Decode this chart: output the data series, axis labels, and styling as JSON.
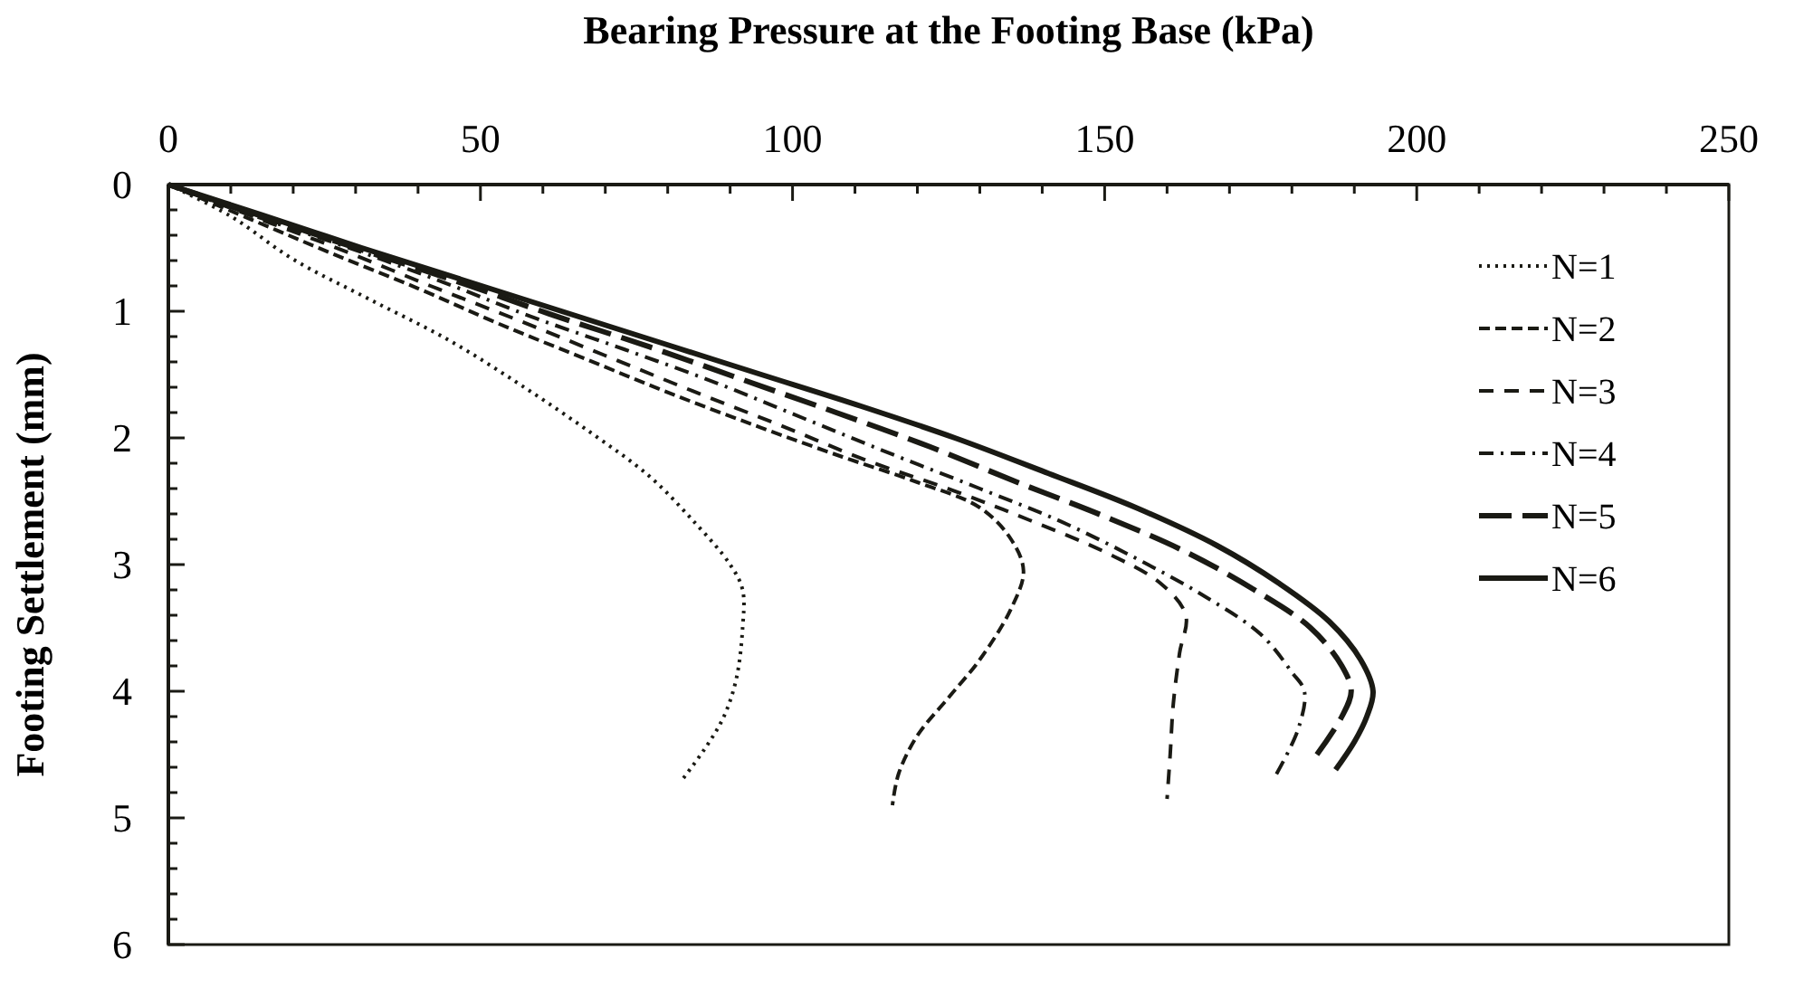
{
  "chart_data": {
    "type": "line",
    "xlabel": "Bearing Pressure at the Footing Base (kPa)",
    "ylabel": "Footing Settlement (mm)",
    "xlim": [
      0,
      250
    ],
    "ylim": [
      6,
      0
    ],
    "xticks": [
      0,
      {
        "value": 10,
        "label": null
      },
      {
        "value": 20,
        "label": null
      },
      {
        "value": 30,
        "label": null
      },
      {
        "value": 40,
        "label": null
      },
      50,
      {
        "value": 60,
        "label": null
      },
      {
        "value": 70,
        "label": null
      },
      {
        "value": 80,
        "label": null
      },
      {
        "value": 90,
        "label": null
      },
      100,
      {
        "value": 110,
        "label": null
      },
      {
        "value": 120,
        "label": null
      },
      {
        "value": 130,
        "label": null
      },
      {
        "value": 140,
        "label": null
      },
      150,
      {
        "value": 160,
        "label": null
      },
      {
        "value": 170,
        "label": null
      },
      {
        "value": 180,
        "label": null
      },
      {
        "value": 190,
        "label": null
      },
      200,
      {
        "value": 210,
        "label": null
      },
      {
        "value": 220,
        "label": null
      },
      {
        "value": 230,
        "label": null
      },
      {
        "value": 240,
        "label": null
      },
      250
    ],
    "yticks": [
      0,
      {
        "value": 0.2,
        "label": null
      },
      {
        "value": 0.4,
        "label": null
      },
      {
        "value": 0.6,
        "label": null
      },
      {
        "value": 0.8,
        "label": null
      },
      1,
      {
        "value": 1.2,
        "label": null
      },
      {
        "value": 1.4,
        "label": null
      },
      {
        "value": 1.6,
        "label": null
      },
      {
        "value": 1.8,
        "label": null
      },
      2,
      {
        "value": 2.2,
        "label": null
      },
      {
        "value": 2.4,
        "label": null
      },
      {
        "value": 2.6,
        "label": null
      },
      {
        "value": 2.8,
        "label": null
      },
      3,
      {
        "value": 3.2,
        "label": null
      },
      {
        "value": 3.4,
        "label": null
      },
      {
        "value": 3.6,
        "label": null
      },
      {
        "value": 3.8,
        "label": null
      },
      4,
      {
        "value": 4.2,
        "label": null
      },
      {
        "value": 4.4,
        "label": null
      },
      {
        "value": 4.6,
        "label": null
      },
      {
        "value": 4.8,
        "label": null
      },
      5,
      {
        "value": 5.2,
        "label": null
      },
      {
        "value": 5.4,
        "label": null
      },
      {
        "value": 5.6,
        "label": null
      },
      {
        "value": 5.8,
        "label": null
      },
      6
    ],
    "legend": "top right",
    "grid": false,
    "marker": "none",
    "series": [
      {
        "name": "N=1",
        "color": "#1a1a14",
        "line_style": "dotted",
        "x": [
          0,
          10,
          20,
          32,
          45,
          57,
          68,
          77,
          84,
          90,
          92,
          92,
          91,
          89,
          86,
          82
        ],
        "values": [
          0,
          0.25,
          0.59,
          0.9,
          1.23,
          1.6,
          1.97,
          2.3,
          2.65,
          3.0,
          3.2,
          3.5,
          3.9,
          4.2,
          4.45,
          4.72
        ]
      },
      {
        "name": "N=2",
        "color": "#1a1a14",
        "line_style": "dashed",
        "x": [
          0,
          13,
          26,
          40,
          53,
          67,
          81,
          95,
          108,
          120,
          130,
          135,
          137,
          135,
          130,
          125,
          120,
          117,
          116
        ],
        "values": [
          0,
          0.27,
          0.54,
          0.82,
          1.1,
          1.38,
          1.66,
          1.92,
          2.15,
          2.35,
          2.55,
          2.8,
          3.05,
          3.35,
          3.75,
          4.05,
          4.35,
          4.65,
          4.9
        ]
      },
      {
        "name": "N=3",
        "color": "#1a1a14",
        "line_style": "dashed",
        "x": [
          0,
          14,
          28,
          42,
          56,
          70,
          84,
          98,
          112,
          126,
          138,
          150,
          159,
          163,
          162,
          161,
          160.5,
          160
        ],
        "values": [
          0,
          0.26,
          0.52,
          0.8,
          1.07,
          1.35,
          1.63,
          1.9,
          2.18,
          2.42,
          2.65,
          2.9,
          3.15,
          3.4,
          3.7,
          4.1,
          4.5,
          4.85
        ]
      },
      {
        "name": "N=4",
        "color": "#1a1a14",
        "line_style": "dashed",
        "x": [
          0,
          14,
          29,
          44,
          58,
          73,
          88,
          102,
          116,
          130,
          143,
          155,
          166,
          175,
          180,
          182,
          181,
          177
        ],
        "values": [
          0,
          0.25,
          0.5,
          0.77,
          1.04,
          1.3,
          1.57,
          1.85,
          2.13,
          2.4,
          2.66,
          2.95,
          3.25,
          3.55,
          3.85,
          4.0,
          4.3,
          4.7
        ]
      },
      {
        "name": "N=5",
        "color": "#1a1a14",
        "line_style": "dashed",
        "x": [
          0,
          15,
          30,
          46,
          61,
          77,
          92,
          107,
          122,
          136,
          150,
          163,
          174,
          183,
          188,
          189.5,
          188,
          184
        ],
        "values": [
          0,
          0.25,
          0.5,
          0.76,
          1.02,
          1.28,
          1.54,
          1.8,
          2.07,
          2.35,
          2.62,
          2.9,
          3.2,
          3.5,
          3.8,
          4.0,
          4.2,
          4.5
        ]
      },
      {
        "name": "N=6",
        "color": "#1a1a14",
        "line_style": "solid",
        "x": [
          0,
          15,
          31,
          47,
          63,
          79,
          95,
          111,
          126,
          141,
          155,
          168,
          178,
          186,
          191,
          193,
          192,
          190,
          187
        ],
        "values": [
          0,
          0.24,
          0.5,
          0.75,
          1,
          1.25,
          1.5,
          1.75,
          2,
          2.28,
          2.55,
          2.85,
          3.15,
          3.45,
          3.75,
          4.0,
          4.2,
          4.4,
          4.62
        ]
      }
    ]
  }
}
